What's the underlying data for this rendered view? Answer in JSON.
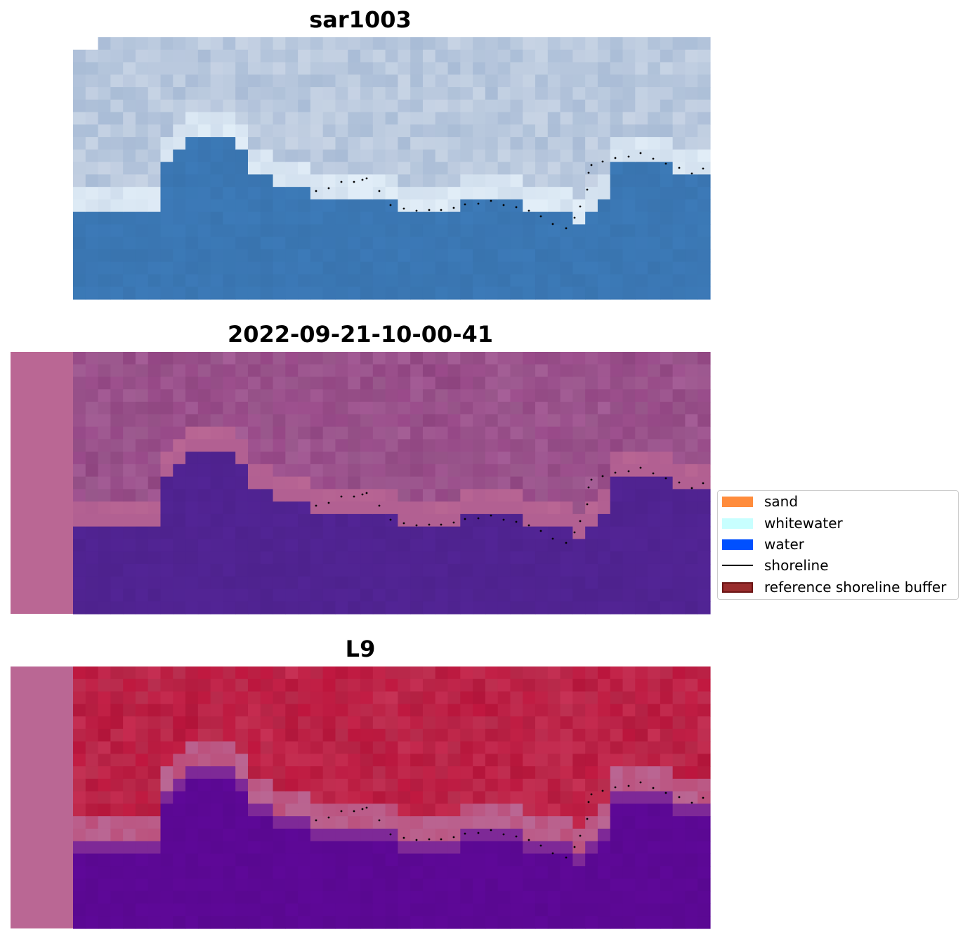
{
  "panels": [
    {
      "title": "sar1003",
      "style": "rgb"
    },
    {
      "title": "2022-09-21-10-00-41",
      "style": "index"
    },
    {
      "title": "L9",
      "style": "swir"
    }
  ],
  "legend": {
    "items": [
      {
        "label": "sand",
        "kind": "patch",
        "color": "#ff8c3c"
      },
      {
        "label": "whitewater",
        "kind": "patch",
        "color": "#c8ffff"
      },
      {
        "label": "water",
        "kind": "patch",
        "color": "#0050ff"
      },
      {
        "label": "shoreline",
        "kind": "line",
        "color": "#000000"
      },
      {
        "label": "reference shoreline buffer",
        "kind": "patch",
        "color": "#992c2c",
        "edge": "#6b1414"
      }
    ]
  },
  "colors": {
    "buffer_strip": "#ba6794",
    "rgb_water": "#3c7ab8",
    "rgb_land": "#a9bcd6",
    "rgb_surf": "#e2eef8",
    "index_water": "#522495",
    "index_land": "#9a4a8a",
    "swir_water": "#5e0898",
    "swir_land": "#c0163e",
    "shoreline_dots": "#000000"
  }
}
